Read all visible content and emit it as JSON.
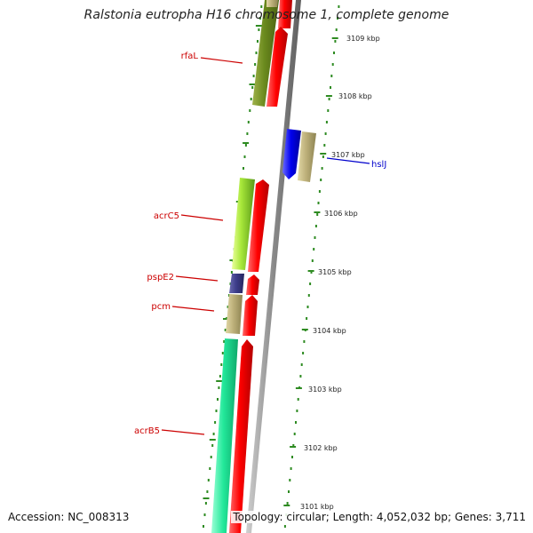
{
  "title": "Ralstonia eutropha H16 chromosome 1, complete genome",
  "footer": {
    "accession": "Accession: NC_008313",
    "summary": "Topology: circular; Length: 4,052,032 bp; Genes: 3,711"
  },
  "colors": {
    "tick": "#2e8b22",
    "backbone": "#8a8a8a",
    "reverse_gene_label": "#cc0000",
    "forward_gene_label": "#0000cc",
    "strand_gene": "#ff0000"
  },
  "scale": {
    "labels": [
      "3109 kbp",
      "3108 kbp",
      "3107 kbp",
      "3106 kbp",
      "3105 kbp",
      "3104 kbp",
      "3103 kbp",
      "3102 kbp",
      "3101 kbp"
    ]
  },
  "genes": [
    {
      "name": "rfaL",
      "strand": "reverse"
    },
    {
      "name": "hslJ",
      "strand": "forward"
    },
    {
      "name": "acrC5",
      "strand": "reverse"
    },
    {
      "name": "pspE2",
      "strand": "reverse"
    },
    {
      "name": "pcm",
      "strand": "reverse"
    },
    {
      "name": "acrB5",
      "strand": "reverse"
    }
  ]
}
